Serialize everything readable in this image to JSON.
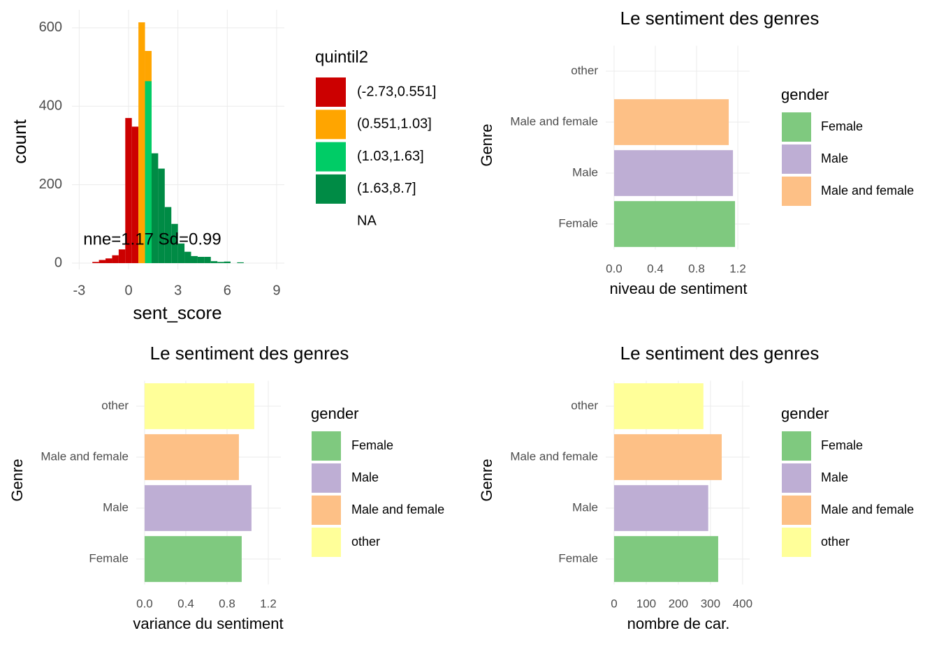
{
  "chart_data": [
    {
      "type": "histogram",
      "x_label": "sent_score",
      "y_label": "count",
      "annotation": "nne=1.17 Sd=0.99",
      "legend_title": "quintil2",
      "bins": [
        -2.2,
        -1.8,
        -1.4,
        -1,
        -0.6,
        -0.2,
        0.2,
        0.6,
        1,
        1.4,
        1.8,
        2.2,
        2.6,
        3,
        3.4,
        3.8,
        4.2,
        4.6,
        5,
        5.4,
        5.8,
        6.2,
        6.6,
        7
      ],
      "series": [
        {
          "name": "(-2.73,0.551]",
          "color": "#cc0000",
          "values": [
            3,
            8,
            12,
            20,
            35,
            370,
            348,
            null,
            null,
            null,
            null,
            null,
            null,
            null,
            null,
            null,
            null,
            null,
            null,
            null,
            null,
            null,
            null
          ]
        },
        {
          "name": "(0.551,1.03]",
          "color": "#ffa500",
          "values": [
            null,
            null,
            null,
            null,
            null,
            null,
            null,
            614,
            541,
            null,
            null,
            null,
            null,
            null,
            null,
            null,
            null,
            null,
            null,
            null,
            null,
            null,
            null
          ]
        },
        {
          "name": "(1.03,1.63]",
          "color": "#00cc66",
          "values": [
            null,
            null,
            null,
            null,
            null,
            null,
            null,
            null,
            464,
            null,
            null,
            null,
            null,
            null,
            null,
            null,
            null,
            null,
            null,
            null,
            null,
            null,
            null
          ]
        },
        {
          "name": "(1.63,8.7]",
          "color": "#008b45",
          "values": [
            null,
            null,
            null,
            null,
            null,
            null,
            null,
            null,
            null,
            280,
            241,
            143,
            100,
            50,
            29,
            18,
            16,
            16,
            5,
            3,
            4,
            null,
            2
          ]
        },
        {
          "name": "NA",
          "color": "#ffffff",
          "values": [
            null,
            null,
            null,
            null,
            null,
            null,
            null,
            null,
            null,
            null,
            null,
            null,
            null,
            null,
            null,
            null,
            null,
            null,
            null,
            null,
            null,
            null,
            null
          ]
        }
      ],
      "xlim": [
        -3.44,
        9.47
      ],
      "xticks": [
        -3,
        0,
        3,
        6,
        9
      ],
      "ylim": [
        -16,
        646
      ],
      "yticks": [
        0,
        200,
        400,
        600
      ],
      "grid": true
    },
    {
      "type": "hbar",
      "title": "Le sentiment des genres",
      "x_label": "niveau de sentiment",
      "y_label": "Genre",
      "legend_title": "gender",
      "categories": [
        "Female",
        "Male",
        "Male and female",
        "other"
      ],
      "values": [
        1.173,
        1.153,
        1.112,
        null
      ],
      "colors": [
        "#7fc97f",
        "#beaed4",
        "#fdc086",
        "#ffff99"
      ],
      "xlim": [
        -0.081,
        1.315
      ],
      "xticks": [
        {
          "value": 0,
          "label": "0.0"
        },
        0.4,
        0.8,
        1.2
      ],
      "grid": true
    },
    {
      "type": "hbar",
      "title": "Le sentiment des genres",
      "x_label": "variance du sentiment",
      "y_label": "Genre",
      "legend_title": "gender",
      "categories": [
        "Female",
        "Male",
        "Male and female",
        "other"
      ],
      "values": [
        0.942,
        1.037,
        0.915,
        1.064
      ],
      "colors": [
        "#7fc97f",
        "#beaed4",
        "#fdc086",
        "#ffff99"
      ],
      "xlim": [
        -0.081,
        1.322
      ],
      "xticks": [
        {
          "value": 0,
          "label": "0.0"
        },
        0.4,
        0.8,
        1.2
      ],
      "grid": true
    },
    {
      "type": "hbar",
      "title": "Le sentiment des genres",
      "x_label": "nombre de car.",
      "y_label": "Genre",
      "legend_title": "gender",
      "categories": [
        "Female",
        "Male",
        "Male and female",
        "other"
      ],
      "values": [
        324,
        293,
        335,
        278
      ],
      "colors": [
        "#7fc97f",
        "#beaed4",
        "#fdc086",
        "#ffff99"
      ],
      "xlim": [
        -26,
        422
      ],
      "xticks": [
        0,
        100,
        200,
        300,
        400
      ],
      "grid": true
    }
  ]
}
